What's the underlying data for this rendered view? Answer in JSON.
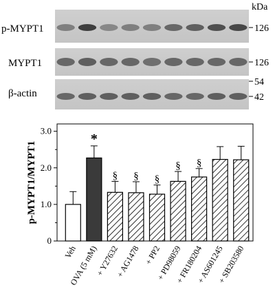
{
  "blot": {
    "kda_label": "kDa",
    "panels": [
      {
        "label": "p-MYPT1",
        "markers": [
          "126"
        ]
      },
      {
        "label": "MYPT1",
        "markers": [
          "126"
        ]
      },
      {
        "label": "β-actin",
        "markers": [
          "54",
          "42"
        ]
      }
    ]
  },
  "chart_data": {
    "type": "bar",
    "ylabel": "p-MYPT1/MYPT1",
    "ylim": [
      0,
      3.2
    ],
    "yticks": [
      "0",
      "1.0",
      "2.0",
      "3.0"
    ],
    "categories": [
      "Veh",
      "OVA (5 mM)",
      "+ Y27632",
      "+ AG1478",
      "+ PP2",
      "+ PD98059",
      "+ FR180204",
      "+ AS601245",
      "+ SB203580"
    ],
    "values": [
      1.0,
      2.27,
      1.33,
      1.32,
      1.28,
      1.63,
      1.75,
      2.23,
      2.22
    ],
    "errors": [
      0.35,
      0.33,
      0.3,
      0.3,
      0.25,
      0.27,
      0.23,
      0.35,
      0.37
    ],
    "fills": [
      "white",
      "solid",
      "hatched",
      "hatched",
      "hatched",
      "hatched",
      "hatched",
      "hatched",
      "hatched"
    ],
    "annotations": [
      "",
      "*",
      "§",
      "§",
      "§",
      "§",
      "§",
      "",
      ""
    ]
  }
}
